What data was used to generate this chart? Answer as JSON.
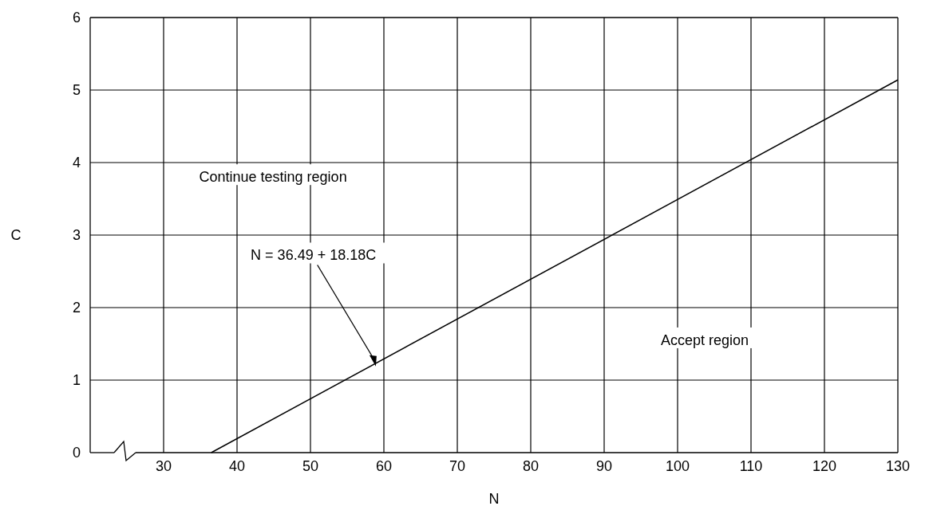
{
  "chart_data": {
    "type": "line",
    "xlabel": "N",
    "ylabel": "C",
    "series": [
      {
        "color": "#000000",
        "x": [
          36.49,
          130
        ],
        "values": [
          0,
          5.14
        ]
      }
    ],
    "xlim": [
      20,
      130
    ],
    "xticks": [
      30,
      40,
      50,
      60,
      70,
      80,
      90,
      100,
      110,
      120,
      130
    ],
    "ylim": [
      0,
      6
    ],
    "yticks": [
      0,
      1,
      2,
      3,
      4,
      5,
      6
    ],
    "grid": true,
    "marker": "none",
    "line_style": "solid",
    "annotations": [
      "Continue testing region",
      "Accept region",
      "N = 36.49 + 18.18C"
    ]
  }
}
